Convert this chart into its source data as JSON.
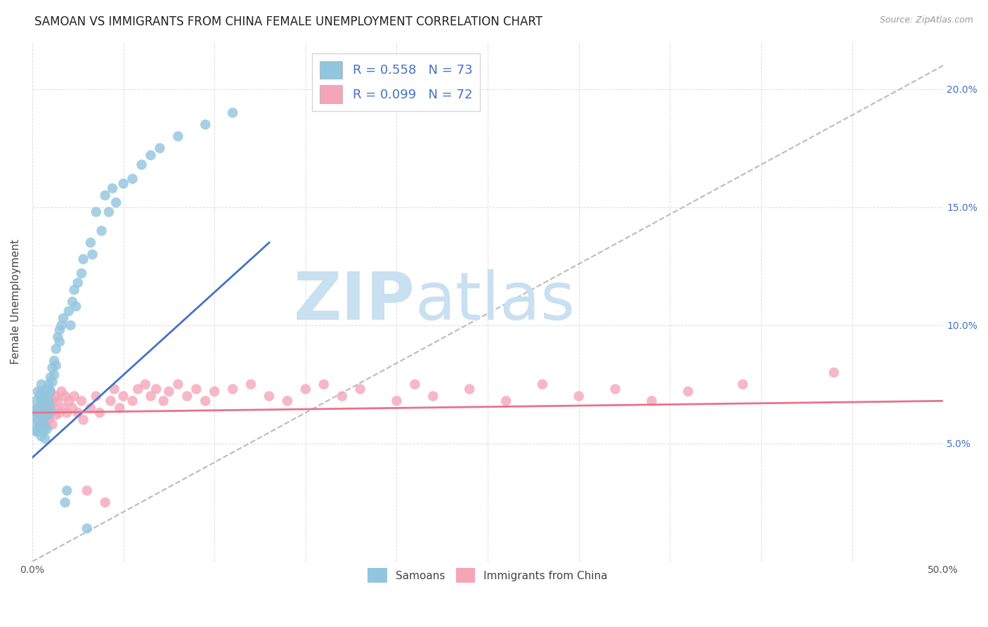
{
  "title": "SAMOAN VS IMMIGRANTS FROM CHINA FEMALE UNEMPLOYMENT CORRELATION CHART",
  "source": "Source: ZipAtlas.com",
  "ylabel": "Female Unemployment",
  "xlim": [
    0.0,
    0.5
  ],
  "ylim": [
    0.0,
    0.22
  ],
  "xticks": [
    0.0,
    0.05,
    0.1,
    0.15,
    0.2,
    0.25,
    0.3,
    0.35,
    0.4,
    0.45,
    0.5
  ],
  "yticks": [
    0.0,
    0.05,
    0.1,
    0.15,
    0.2
  ],
  "left_ytick_labels": [
    "",
    "",
    "",
    "",
    ""
  ],
  "xtick_labels": [
    "0.0%",
    "",
    "",
    "",
    "",
    "",
    "",
    "",
    "",
    "",
    "50.0%"
  ],
  "right_ytick_labels": [
    "",
    "5.0%",
    "10.0%",
    "15.0%",
    "20.0%"
  ],
  "right_ytick_color": "#4472C4",
  "legend_r1": "R = 0.558",
  "legend_n1": "N = 73",
  "legend_r2": "R = 0.099",
  "legend_n2": "N = 72",
  "color_blue": "#92C5DE",
  "color_pink": "#F4A6B8",
  "line_blue": "#4472C4",
  "line_pink": "#E8738A",
  "line_dash_color": "#BBBBBB",
  "watermark_text": "ZIPatlas",
  "watermark_color": "#C8E0F0",
  "background_color": "#FFFFFF",
  "grid_color": "#DDDDDD",
  "title_fontsize": 12,
  "label_fontsize": 11,
  "tick_fontsize": 10,
  "samoan_x": [
    0.001,
    0.001,
    0.002,
    0.002,
    0.002,
    0.003,
    0.003,
    0.003,
    0.003,
    0.004,
    0.004,
    0.004,
    0.005,
    0.005,
    0.005,
    0.005,
    0.005,
    0.006,
    0.006,
    0.006,
    0.006,
    0.007,
    0.007,
    0.007,
    0.007,
    0.008,
    0.008,
    0.008,
    0.008,
    0.009,
    0.009,
    0.009,
    0.01,
    0.01,
    0.01,
    0.011,
    0.011,
    0.012,
    0.012,
    0.013,
    0.013,
    0.014,
    0.015,
    0.015,
    0.016,
    0.017,
    0.018,
    0.019,
    0.02,
    0.021,
    0.022,
    0.023,
    0.024,
    0.025,
    0.027,
    0.028,
    0.03,
    0.032,
    0.033,
    0.035,
    0.038,
    0.04,
    0.042,
    0.044,
    0.046,
    0.05,
    0.055,
    0.06,
    0.065,
    0.07,
    0.08,
    0.095,
    0.11
  ],
  "samoan_y": [
    0.064,
    0.062,
    0.068,
    0.058,
    0.055,
    0.072,
    0.065,
    0.06,
    0.055,
    0.07,
    0.063,
    0.057,
    0.075,
    0.068,
    0.062,
    0.058,
    0.053,
    0.072,
    0.065,
    0.06,
    0.055,
    0.07,
    0.063,
    0.057,
    0.052,
    0.073,
    0.067,
    0.062,
    0.056,
    0.075,
    0.068,
    0.062,
    0.078,
    0.072,
    0.065,
    0.082,
    0.076,
    0.085,
    0.079,
    0.09,
    0.083,
    0.095,
    0.098,
    0.093,
    0.1,
    0.103,
    0.025,
    0.03,
    0.106,
    0.1,
    0.11,
    0.115,
    0.108,
    0.118,
    0.122,
    0.128,
    0.014,
    0.135,
    0.13,
    0.148,
    0.14,
    0.155,
    0.148,
    0.158,
    0.152,
    0.16,
    0.162,
    0.168,
    0.172,
    0.175,
    0.18,
    0.185,
    0.19
  ],
  "china_x": [
    0.003,
    0.004,
    0.005,
    0.005,
    0.006,
    0.006,
    0.007,
    0.007,
    0.008,
    0.008,
    0.009,
    0.009,
    0.01,
    0.01,
    0.011,
    0.011,
    0.012,
    0.013,
    0.013,
    0.014,
    0.015,
    0.016,
    0.017,
    0.018,
    0.019,
    0.02,
    0.022,
    0.023,
    0.025,
    0.027,
    0.028,
    0.03,
    0.032,
    0.035,
    0.037,
    0.04,
    0.043,
    0.045,
    0.048,
    0.05,
    0.055,
    0.058,
    0.062,
    0.065,
    0.068,
    0.072,
    0.075,
    0.08,
    0.085,
    0.09,
    0.095,
    0.1,
    0.11,
    0.12,
    0.13,
    0.14,
    0.15,
    0.16,
    0.17,
    0.18,
    0.2,
    0.21,
    0.22,
    0.24,
    0.26,
    0.28,
    0.3,
    0.32,
    0.34,
    0.36,
    0.39,
    0.44
  ],
  "china_y": [
    0.063,
    0.058,
    0.072,
    0.065,
    0.068,
    0.06,
    0.065,
    0.058,
    0.07,
    0.062,
    0.068,
    0.06,
    0.072,
    0.063,
    0.068,
    0.058,
    0.065,
    0.07,
    0.062,
    0.068,
    0.063,
    0.072,
    0.065,
    0.07,
    0.063,
    0.068,
    0.065,
    0.07,
    0.063,
    0.068,
    0.06,
    0.03,
    0.065,
    0.07,
    0.063,
    0.025,
    0.068,
    0.073,
    0.065,
    0.07,
    0.068,
    0.073,
    0.075,
    0.07,
    0.073,
    0.068,
    0.072,
    0.075,
    0.07,
    0.073,
    0.068,
    0.072,
    0.073,
    0.075,
    0.07,
    0.068,
    0.073,
    0.075,
    0.07,
    0.073,
    0.068,
    0.075,
    0.07,
    0.073,
    0.068,
    0.075,
    0.07,
    0.073,
    0.068,
    0.072,
    0.075,
    0.08
  ],
  "blue_line_x": [
    0.0,
    0.13
  ],
  "blue_line_y": [
    0.044,
    0.135
  ],
  "pink_line_x": [
    0.0,
    0.5
  ],
  "pink_line_y": [
    0.063,
    0.068
  ]
}
